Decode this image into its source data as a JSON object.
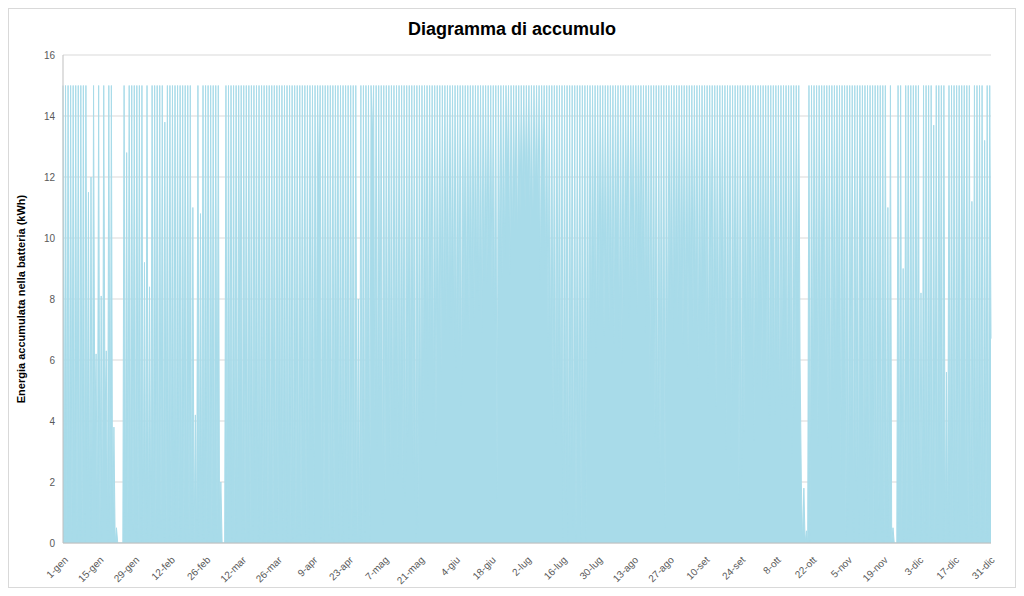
{
  "chart_data": {
    "type": "area",
    "title": "Diagramma di accumulo",
    "y_label": "Energia accumulata nella batteria (kWh)",
    "color": "#a8dbe9",
    "ylim": [
      0,
      16
    ],
    "yticks": [
      0,
      2,
      4,
      6,
      8,
      10,
      12,
      14,
      16
    ],
    "grid": true,
    "categories": [
      "1-gen",
      null,
      null,
      null,
      null,
      null,
      null,
      null,
      null,
      null,
      null,
      null,
      null,
      null,
      null,
      null,
      null,
      null,
      null,
      null,
      null,
      null,
      null,
      null,
      null,
      null,
      null,
      null,
      "15-gen",
      null,
      null,
      null,
      null,
      null,
      null,
      null,
      null,
      null,
      null,
      null,
      null,
      null,
      null,
      null,
      null,
      null,
      null,
      null,
      null,
      null,
      null,
      null,
      null,
      null,
      null,
      null,
      "29-gen",
      null,
      null,
      null,
      null,
      null,
      null,
      null,
      null,
      null,
      null,
      null,
      null,
      null,
      null,
      null,
      null,
      null,
      null,
      null,
      null,
      null,
      null,
      null,
      null,
      null,
      null,
      null,
      "12-feb",
      null,
      null,
      null,
      null,
      null,
      null,
      null,
      null,
      null,
      null,
      null,
      null,
      null,
      null,
      null,
      null,
      null,
      null,
      null,
      null,
      null,
      null,
      null,
      null,
      null,
      null,
      null,
      "26-feb",
      null,
      null,
      null,
      null,
      null,
      null,
      null,
      null,
      null,
      null,
      null,
      null,
      null,
      null,
      null,
      null,
      null,
      null,
      null,
      null,
      null,
      null,
      null,
      null,
      null,
      null,
      null,
      "12-mar",
      null,
      null,
      null,
      null,
      null,
      null,
      null,
      null,
      null,
      null,
      null,
      null,
      null,
      null,
      null,
      null,
      null,
      null,
      null,
      null,
      null,
      null,
      null,
      null,
      null,
      null,
      null,
      "26-mar",
      null,
      null,
      null,
      null,
      null,
      null,
      null,
      null,
      null,
      null,
      null,
      null,
      null,
      null,
      null,
      null,
      null,
      null,
      null,
      null,
      null,
      null,
      null,
      null,
      null,
      null,
      null,
      "9-apr",
      null,
      null,
      null,
      null,
      null,
      null,
      null,
      null,
      null,
      null,
      null,
      null,
      null,
      null,
      null,
      null,
      null,
      null,
      null,
      null,
      null,
      null,
      null,
      null,
      null,
      null,
      null,
      "23-apr",
      null,
      null,
      null,
      null,
      null,
      null,
      null,
      null,
      null,
      null,
      null,
      null,
      null,
      null,
      null,
      null,
      null,
      null,
      null,
      null,
      null,
      null,
      null,
      null,
      null,
      null,
      null,
      "7-mag",
      null,
      null,
      null,
      null,
      null,
      null,
      null,
      null,
      null,
      null,
      null,
      null,
      null,
      null,
      null,
      null,
      null,
      null,
      null,
      null,
      null,
      null,
      null,
      null,
      null,
      null,
      null,
      "21-mag",
      null,
      null,
      null,
      null,
      null,
      null,
      null,
      null,
      null,
      null,
      null,
      null,
      null,
      null,
      null,
      null,
      null,
      null,
      null,
      null,
      null,
      null,
      null,
      null,
      null,
      null,
      null,
      "4-giu",
      null,
      null,
      null,
      null,
      null,
      null,
      null,
      null,
      null,
      null,
      null,
      null,
      null,
      null,
      null,
      null,
      null,
      null,
      null,
      null,
      null,
      null,
      null,
      null,
      null,
      null,
      null,
      "18-giu",
      null,
      null,
      null,
      null,
      null,
      null,
      null,
      null,
      null,
      null,
      null,
      null,
      null,
      null,
      null,
      null,
      null,
      null,
      null,
      null,
      null,
      null,
      null,
      null,
      null,
      null,
      null,
      "2-lug",
      null,
      null,
      null,
      null,
      null,
      null,
      null,
      null,
      null,
      null,
      null,
      null,
      null,
      null,
      null,
      null,
      null,
      null,
      null,
      null,
      null,
      null,
      null,
      null,
      null,
      null,
      null,
      "16-lug",
      null,
      null,
      null,
      null,
      null,
      null,
      null,
      null,
      null,
      null,
      null,
      null,
      null,
      null,
      null,
      null,
      null,
      null,
      null,
      null,
      null,
      null,
      null,
      null,
      null,
      null,
      null,
      "30-lug",
      null,
      null,
      null,
      null,
      null,
      null,
      null,
      null,
      null,
      null,
      null,
      null,
      null,
      null,
      null,
      null,
      null,
      null,
      null,
      null,
      null,
      null,
      null,
      null,
      null,
      null,
      null,
      "13-ago",
      null,
      null,
      null,
      null,
      null,
      null,
      null,
      null,
      null,
      null,
      null,
      null,
      null,
      null,
      null,
      null,
      null,
      null,
      null,
      null,
      null,
      null,
      null,
      null,
      null,
      null,
      null,
      "27-ago",
      null,
      null,
      null,
      null,
      null,
      null,
      null,
      null,
      null,
      null,
      null,
      null,
      null,
      null,
      null,
      null,
      null,
      null,
      null,
      null,
      null,
      null,
      null,
      null,
      null,
      null,
      null,
      "10-set",
      null,
      null,
      null,
      null,
      null,
      null,
      null,
      null,
      null,
      null,
      null,
      null,
      null,
      null,
      null,
      null,
      null,
      null,
      null,
      null,
      null,
      null,
      null,
      null,
      null,
      null,
      null,
      "24-set",
      null,
      null,
      null,
      null,
      null,
      null,
      null,
      null,
      null,
      null,
      null,
      null,
      null,
      null,
      null,
      null,
      null,
      null,
      null,
      null,
      null,
      null,
      null,
      null,
      null,
      null,
      null,
      "8-ott",
      null,
      null,
      null,
      null,
      null,
      null,
      null,
      null,
      null,
      null,
      null,
      null,
      null,
      null,
      null,
      null,
      null,
      null,
      null,
      null,
      null,
      null,
      null,
      null,
      null,
      null,
      null,
      "22-ott",
      null,
      null,
      null,
      null,
      null,
      null,
      null,
      null,
      null,
      null,
      null,
      null,
      null,
      null,
      null,
      null,
      null,
      null,
      null,
      null,
      null,
      null,
      null,
      null,
      null,
      null,
      null,
      "5-nov",
      null,
      null,
      null,
      null,
      null,
      null,
      null,
      null,
      null,
      null,
      null,
      null,
      null,
      null,
      null,
      null,
      null,
      null,
      null,
      null,
      null,
      null,
      null,
      null,
      null,
      null,
      null,
      "19-nov",
      null,
      null,
      null,
      null,
      null,
      null,
      null,
      null,
      null,
      null,
      null,
      null,
      null,
      null,
      null,
      null,
      null,
      null,
      null,
      null,
      null,
      null,
      null,
      null,
      null,
      null,
      null,
      "3-dic",
      null,
      null,
      null,
      null,
      null,
      null,
      null,
      null,
      null,
      null,
      null,
      null,
      null,
      null,
      null,
      null,
      null,
      null,
      null,
      null,
      null,
      null,
      null,
      null,
      null,
      null,
      null,
      "17-dic",
      null,
      null,
      null,
      null,
      null,
      null,
      null,
      null,
      null,
      null,
      null,
      null,
      null,
      null,
      null,
      null,
      null,
      null,
      null,
      null,
      null,
      null,
      null,
      null,
      null,
      null,
      null,
      "31-dic",
      null
    ],
    "values": [
      15,
      0,
      15,
      0,
      15,
      0.5,
      15,
      0,
      15,
      1,
      15,
      0,
      15,
      0,
      15,
      0,
      15,
      0,
      15,
      2,
      11.5,
      0,
      12,
      0,
      15,
      3.7,
      6.2,
      0,
      15,
      0,
      8.1,
      0,
      15,
      4,
      6.3,
      0,
      15,
      0,
      15,
      0,
      3.8,
      0,
      0.5,
      0,
      0,
      0,
      0,
      0,
      15,
      0,
      12.8,
      0,
      15,
      0,
      15,
      0.3,
      15,
      0,
      15,
      0,
      15,
      0,
      15,
      0,
      9.2,
      0,
      15,
      0,
      8.4,
      0,
      15,
      0,
      15,
      0,
      15,
      0,
      15,
      0.4,
      15,
      0,
      13.8,
      0,
      15,
      0,
      15,
      0,
      15,
      0,
      15,
      0,
      15,
      0,
      15,
      0,
      15,
      0,
      15,
      0,
      15,
      0,
      15,
      0,
      11,
      0,
      4.2,
      0,
      15,
      0,
      10.8,
      0,
      15,
      0,
      15,
      0,
      15,
      0,
      15,
      0,
      15,
      0,
      15,
      0,
      15,
      0,
      2,
      0,
      0,
      0,
      15,
      0,
      15,
      1.6,
      15,
      0,
      15,
      0,
      15,
      0,
      15,
      5,
      15,
      0,
      15,
      0,
      15,
      0,
      15,
      0,
      15,
      0,
      15,
      2,
      15,
      0,
      15,
      0,
      15,
      0,
      15,
      0,
      15,
      0,
      15,
      0,
      15,
      0,
      15,
      0,
      15,
      0,
      15,
      1,
      15,
      0,
      15,
      0,
      15,
      0,
      15,
      0,
      15,
      0,
      15,
      0,
      15,
      0,
      15,
      0,
      15,
      1,
      15,
      0,
      15,
      0,
      15,
      3,
      15,
      0,
      15,
      4,
      15,
      10.6,
      15,
      0,
      15,
      0,
      15,
      2,
      15,
      0,
      15,
      0,
      15,
      0,
      15,
      3.6,
      15,
      0,
      15,
      0,
      15,
      0,
      15,
      1,
      15,
      0,
      15,
      0,
      15,
      0,
      15,
      0,
      8,
      0,
      15,
      0,
      15,
      0,
      15,
      4,
      15,
      0,
      15,
      13.2,
      15,
      4,
      15,
      3,
      15,
      5,
      15,
      0.6,
      15,
      1.4,
      15,
      3.3,
      15,
      2.5,
      15,
      2,
      15,
      4,
      15,
      2.2,
      15,
      3,
      15,
      1.8,
      15,
      1.3,
      15,
      3.5,
      15,
      4.5,
      15,
      2.6,
      15,
      0,
      15,
      0.5,
      15,
      2,
      15,
      4,
      15,
      5.8,
      15,
      5,
      15,
      6.5,
      15,
      4.3,
      15,
      3.2,
      15,
      6,
      15,
      5.5,
      15,
      6.8,
      15,
      7,
      15,
      6.6,
      15,
      7.2,
      15,
      6.1,
      15,
      5.6,
      15,
      6.3,
      15,
      4.5,
      15,
      7,
      15,
      7.5,
      15,
      6.8,
      15,
      8,
      15,
      7.3,
      15,
      8.2,
      15,
      7.6,
      15,
      6.9,
      15,
      8.6,
      15,
      8.5,
      15,
      9.4,
      15,
      8,
      15,
      7.2,
      15,
      1.4,
      15,
      9,
      15,
      8.6,
      15,
      9.3,
      15,
      11.7,
      15,
      8.8,
      15,
      9.6,
      15,
      10.2,
      15,
      9.5,
      15,
      10.5,
      15,
      11.3,
      15,
      10.8,
      15,
      11.4,
      15,
      10.2,
      15,
      9.8,
      15,
      11,
      15,
      10.5,
      15,
      8.6,
      15,
      11.2,
      15,
      9,
      15,
      6.6,
      15,
      5.5,
      15,
      3.6,
      15,
      3.2,
      15,
      4.2,
      15,
      2.8,
      15,
      0,
      15,
      1.3,
      15,
      0,
      15,
      2.5,
      15,
      0.5,
      15,
      0,
      15,
      1.8,
      15,
      0,
      15,
      1.2,
      15,
      0,
      15,
      4,
      15,
      6.4,
      15,
      7.2,
      15,
      6.1,
      15,
      7.5,
      15,
      9,
      15,
      6.8,
      15,
      8.2,
      15,
      7,
      15,
      7.7,
      15,
      6.5,
      15,
      8.8,
      15,
      6.4,
      15,
      5.9,
      15,
      7.8,
      15,
      9,
      15,
      7.4,
      15,
      8.6,
      15,
      8.1,
      15,
      7.5,
      15,
      9.2,
      15,
      8.4,
      15,
      6.9,
      15,
      7.3,
      15,
      4.8,
      15,
      6,
      15,
      3.5,
      15,
      2.6,
      15,
      2.4,
      15,
      4.2,
      15,
      0.5,
      15,
      5,
      15,
      7.4,
      15,
      6.6,
      15,
      7.9,
      15,
      7.1,
      15,
      8,
      15,
      6.5,
      15,
      7.6,
      15,
      5.8,
      15,
      8.4,
      15,
      6.9,
      15,
      7.3,
      15,
      5.2,
      15,
      6.8,
      15,
      7.9,
      15,
      6.2,
      15,
      5,
      15,
      7.5,
      15,
      6.5,
      15,
      4.4,
      15,
      5.6,
      15,
      7,
      15,
      6.2,
      15,
      3,
      15,
      5.4,
      15,
      2.6,
      15,
      4.8,
      15,
      6.7,
      15,
      1.4,
      15,
      1.8,
      15,
      3.6,
      15,
      5.5,
      15,
      6.6,
      15,
      4.9,
      15,
      3.3,
      15,
      5.2,
      15,
      6.3,
      15,
      4.7,
      15,
      6.7,
      15,
      5.1,
      15,
      3.8,
      15,
      6,
      15,
      4.2,
      15,
      5.7,
      15,
      3,
      15,
      4.5,
      15,
      6.2,
      15,
      3.6,
      15,
      5,
      15,
      2.8,
      15,
      4.4,
      15,
      7.8,
      15,
      6,
      2,
      0,
      1.8,
      0,
      0.4,
      0,
      15,
      0,
      15,
      4,
      15,
      6.2,
      15,
      3.2,
      15,
      5.5,
      15,
      6.5,
      15,
      4,
      15,
      3.3,
      15,
      2.7,
      15,
      5,
      15,
      4.3,
      15,
      6.1,
      15,
      2,
      15,
      4.5,
      15,
      0,
      15,
      0.5,
      15,
      4,
      15,
      0,
      15,
      2,
      15,
      0,
      15,
      6.2,
      15,
      0,
      15,
      1.4,
      15,
      0,
      15,
      2.8,
      15,
      0,
      15,
      0,
      15,
      1,
      15,
      0,
      15,
      0,
      15,
      0,
      11,
      0,
      15,
      0,
      0.5,
      0,
      0,
      0,
      15,
      0,
      15,
      0,
      9,
      0,
      15,
      0,
      15,
      0,
      15,
      0,
      15,
      0,
      15,
      1.5,
      15,
      0,
      8.2,
      0,
      15,
      0,
      15,
      0,
      15,
      0,
      15,
      0,
      13.7,
      0,
      15,
      0,
      15,
      3,
      15,
      0,
      15,
      0,
      5.6,
      0,
      15,
      0,
      15,
      0,
      15,
      0,
      15,
      1,
      15,
      0,
      15,
      4.8,
      15,
      0,
      15,
      0,
      15,
      0,
      11.2,
      0,
      15,
      0,
      15,
      0,
      15,
      0,
      15,
      0,
      13.2,
      0,
      15,
      0,
      15,
      6.7
    ]
  }
}
